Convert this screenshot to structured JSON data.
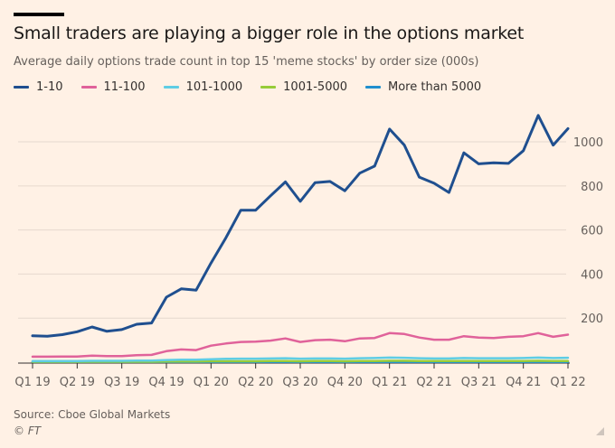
{
  "header": {
    "title": "Small traders are playing a bigger role in the options market",
    "subtitle": "Average daily options trade count in top 15 'meme stocks' by order size (000s)"
  },
  "footer": {
    "source": "Source: Cboe Global Markets",
    "credit": "© FT"
  },
  "colors": {
    "background": "#fff1e5",
    "gridline": "#e6d9ce",
    "axis": "#66605c"
  },
  "chart_data": {
    "type": "line",
    "x_tick_labels": [
      "Q1 19",
      "Q2 19",
      "Q3 19",
      "Q4 19",
      "Q1 20",
      "Q2 20",
      "Q3 20",
      "Q4 20",
      "Q1 21",
      "Q2 21",
      "Q3 21",
      "Q4 21",
      "Q1 22"
    ],
    "y_ticks": [
      200,
      400,
      600,
      800,
      1000
    ],
    "ylim": [
      0,
      1160
    ],
    "grid": true,
    "y_axis_side": "right",
    "legend_position": "top",
    "series": [
      {
        "name": "1-10",
        "color": "#1f4f8f",
        "values": [
          120,
          118,
          125,
          138,
          160,
          140,
          148,
          172,
          178,
          295,
          333,
          327,
          450,
          565,
          690,
          690,
          755,
          818,
          730,
          815,
          820,
          778,
          858,
          890,
          1058,
          985,
          840,
          812,
          770,
          950,
          900,
          905,
          902,
          960,
          1120,
          985,
          1060
        ]
      },
      {
        "name": "11-100",
        "color": "#e0629a",
        "values": [
          25,
          25,
          26,
          26,
          30,
          28,
          28,
          32,
          33,
          50,
          58,
          55,
          75,
          85,
          92,
          93,
          98,
          108,
          92,
          100,
          102,
          95,
          108,
          110,
          132,
          128,
          112,
          102,
          102,
          118,
          112,
          110,
          115,
          118,
          132,
          115,
          125
        ]
      },
      {
        "name": "101-1000",
        "color": "#5fcde4",
        "values": [
          5,
          5,
          5,
          5,
          6,
          6,
          6,
          7,
          7,
          10,
          11,
          11,
          13,
          15,
          16,
          16,
          17,
          18,
          16,
          17,
          17,
          16,
          18,
          19,
          21,
          20,
          18,
          17,
          17,
          19,
          18,
          18,
          18,
          19,
          21,
          19,
          20
        ]
      },
      {
        "name": "1001-5000",
        "color": "#96cc39",
        "values": [
          2,
          2,
          2,
          2,
          2,
          2,
          2,
          2,
          2,
          3,
          3,
          3,
          4,
          4,
          4,
          4,
          5,
          5,
          4,
          5,
          5,
          4,
          5,
          5,
          6,
          6,
          5,
          5,
          5,
          5,
          5,
          5,
          5,
          5,
          6,
          5,
          5
        ]
      },
      {
        "name": "More than 5000",
        "color": "#208fce",
        "values": [
          1,
          1,
          1,
          1,
          1,
          1,
          1,
          1,
          1,
          1,
          1,
          1,
          1,
          1,
          1,
          1,
          1,
          1,
          1,
          1,
          1,
          1,
          1,
          1,
          1,
          1,
          1,
          1,
          1,
          1,
          1,
          1,
          1,
          1,
          1,
          1,
          1
        ]
      }
    ]
  }
}
